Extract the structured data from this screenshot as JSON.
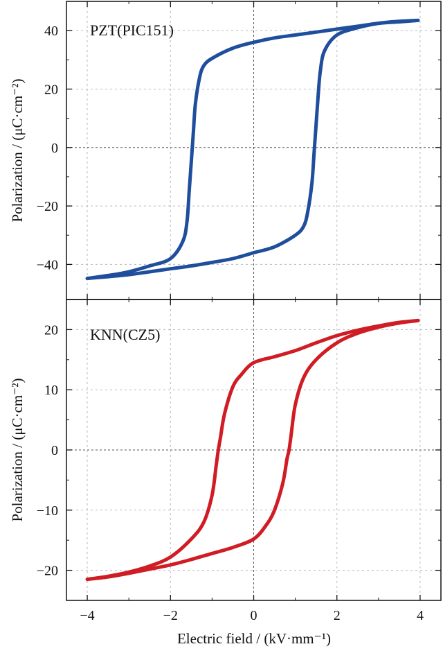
{
  "chart_data": [
    {
      "type": "line",
      "panel_label": "PZT(PIC151)",
      "ylabel": "Polarization / (μC·cm⁻²)",
      "xlim": [
        -4.5,
        4.5
      ],
      "ylim": [
        -52,
        50
      ],
      "yticks": [
        -40,
        -20,
        0,
        20,
        40
      ],
      "ytick_labels": [
        "−40",
        "−20",
        "0",
        "20",
        "40"
      ],
      "grid": true,
      "color": "#1f4e9c",
      "descending_branch": {
        "x": [
          3.95,
          3.5,
          3.0,
          2.5,
          2.0,
          1.5,
          1.0,
          0.5,
          0.0,
          -0.5,
          -1.0,
          -1.2,
          -1.3,
          -1.4,
          -1.45,
          -1.5,
          -1.55,
          -1.6,
          -1.7,
          -2.0,
          -2.5,
          -3.0,
          -3.5,
          -4.0
        ],
        "y": [
          43.5,
          43.0,
          42.5,
          41.5,
          40.5,
          39.5,
          38.5,
          37.5,
          36.0,
          34.0,
          30.5,
          28.0,
          24.0,
          15.0,
          5.0,
          -5.0,
          -15.0,
          -25.0,
          -32.0,
          -38.0,
          -40.5,
          -42.5,
          -43.8,
          -44.8
        ]
      },
      "ascending_branch": {
        "x": [
          -4.0,
          -3.5,
          -3.0,
          -2.5,
          -2.0,
          -1.5,
          -1.0,
          -0.5,
          0.0,
          0.5,
          1.0,
          1.2,
          1.3,
          1.4,
          1.45,
          1.5,
          1.55,
          1.6,
          1.7,
          2.0,
          2.5,
          3.0,
          3.5,
          3.95
        ],
        "y": [
          -44.8,
          -44.2,
          -43.5,
          -42.5,
          -41.5,
          -40.5,
          -39.3,
          -38.0,
          -36.0,
          -34.0,
          -30.0,
          -27.0,
          -22.0,
          -12.0,
          -2.0,
          8.0,
          18.0,
          26.0,
          33.0,
          38.5,
          41.0,
          42.5,
          43.2,
          43.5
        ]
      }
    },
    {
      "type": "line",
      "panel_label": "KNN(CZ5)",
      "xlabel": "Electric field / (kV·mm⁻¹)",
      "ylabel": "Polarization / (μC·cm⁻²)",
      "xlim": [
        -4.5,
        4.5
      ],
      "ylim": [
        -25,
        25
      ],
      "xticks": [
        -4,
        -2,
        0,
        2,
        4
      ],
      "xtick_labels": [
        "−4",
        "−2",
        "0",
        "2",
        "4"
      ],
      "yticks": [
        -20,
        -10,
        0,
        10,
        20
      ],
      "ytick_labels": [
        "−20",
        "−10",
        "0",
        "10",
        "20"
      ],
      "grid": true,
      "color": "#d01c24",
      "descending_branch": {
        "x": [
          3.95,
          3.5,
          3.0,
          2.5,
          2.0,
          1.5,
          1.0,
          0.5,
          0.0,
          -0.3,
          -0.5,
          -0.7,
          -0.8,
          -0.85,
          -0.9,
          -1.0,
          -1.2,
          -1.5,
          -2.0,
          -2.5,
          -3.0,
          -3.5,
          -4.0
        ],
        "y": [
          21.5,
          21.2,
          20.6,
          19.9,
          19.0,
          17.8,
          16.5,
          15.5,
          14.5,
          12.5,
          10.5,
          6.0,
          2.0,
          0.0,
          -2.5,
          -7.5,
          -12.0,
          -14.8,
          -17.8,
          -19.3,
          -20.3,
          -21.0,
          -21.5
        ]
      },
      "ascending_branch": {
        "x": [
          -4.0,
          -3.5,
          -3.0,
          -2.5,
          -2.0,
          -1.5,
          -1.0,
          -0.5,
          0.0,
          0.3,
          0.5,
          0.7,
          0.8,
          0.85,
          0.9,
          1.0,
          1.2,
          1.5,
          2.0,
          2.5,
          3.0,
          3.5,
          3.95
        ],
        "y": [
          -21.5,
          -21.1,
          -20.5,
          -19.8,
          -19.1,
          -18.2,
          -17.2,
          -16.2,
          -14.8,
          -12.5,
          -10.0,
          -5.5,
          -1.5,
          0.0,
          2.5,
          7.5,
          12.0,
          15.0,
          17.8,
          19.4,
          20.4,
          21.1,
          21.5
        ]
      }
    }
  ]
}
